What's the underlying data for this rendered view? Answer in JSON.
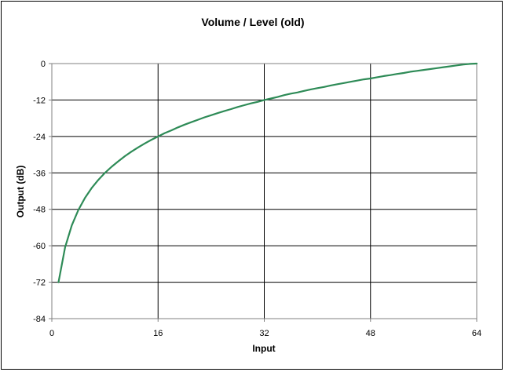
{
  "chart_data": {
    "type": "line",
    "title": "Volume / Level (old)",
    "xlabel": "Input",
    "ylabel": "Output (dB)",
    "xlim": [
      0,
      64
    ],
    "ylim": [
      -84,
      0
    ],
    "x_ticks": [
      0,
      16,
      32,
      48,
      64
    ],
    "y_ticks": [
      0,
      -12,
      -24,
      -36,
      -48,
      -60,
      -72,
      -84
    ],
    "x_tick_labels": [
      "0",
      "16",
      "32",
      "48",
      "64"
    ],
    "y_tick_labels": [
      "0",
      "-12",
      "-24",
      "-36",
      "-48",
      "-60",
      "-72",
      "-84"
    ],
    "grid": true,
    "legend": "none",
    "series": [
      {
        "color": "#2e8b57",
        "x": [
          1,
          2,
          3,
          4,
          5,
          6,
          7,
          8,
          9,
          10,
          11,
          12,
          13,
          14,
          15,
          16,
          17,
          18,
          19,
          20,
          21,
          22,
          23,
          24,
          25,
          26,
          27,
          28,
          29,
          30,
          31,
          32,
          33,
          34,
          35,
          36,
          37,
          38,
          39,
          40,
          41,
          42,
          43,
          44,
          45,
          46,
          47,
          48,
          49,
          50,
          51,
          52,
          53,
          54,
          55,
          56,
          57,
          58,
          59,
          60,
          61,
          62,
          63,
          64
        ],
        "y": [
          -72,
          -60.5,
          -53.3,
          -48.2,
          -44.2,
          -41,
          -38.3,
          -36,
          -34,
          -32.2,
          -30.5,
          -29,
          -27.6,
          -26.3,
          -25.1,
          -24,
          -22.9,
          -22,
          -21,
          -20.1,
          -19.3,
          -18.5,
          -17.7,
          -17,
          -16.3,
          -15.6,
          -15,
          -14.3,
          -13.7,
          -13.1,
          -12.6,
          -12,
          -11.5,
          -11,
          -10.4,
          -9.9,
          -9.5,
          -9,
          -8.5,
          -8.1,
          -7.7,
          -7.2,
          -6.8,
          -6.4,
          -6,
          -5.6,
          -5.2,
          -4.9,
          -4.5,
          -4.1,
          -3.8,
          -3.4,
          -3.1,
          -2.7,
          -2.4,
          -2.1,
          -1.8,
          -1.5,
          -1.2,
          -0.9,
          -0.6,
          -0.3,
          -0.1,
          0
        ]
      }
    ]
  }
}
